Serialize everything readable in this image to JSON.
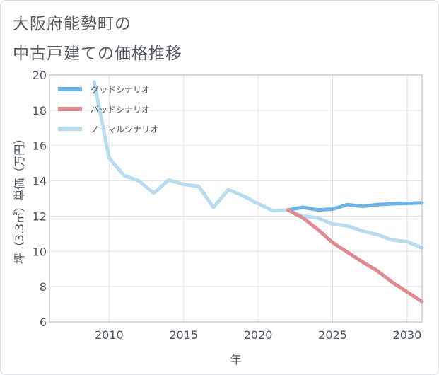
{
  "title": {
    "line1": "大阪府能勢町の",
    "line2": "中古戸建ての価格推移"
  },
  "chart_data": {
    "type": "line",
    "xlabel": "年",
    "ylabel": "坪（3.3㎡）単価（万円）",
    "xlim": [
      2006,
      2031
    ],
    "ylim": [
      6,
      20
    ],
    "xticks": [
      2010,
      2015,
      2020,
      2025,
      2030
    ],
    "yticks": [
      6,
      8,
      10,
      12,
      14,
      16,
      18,
      20
    ],
    "grid": true,
    "legend_position": "top-left",
    "series": [
      {
        "name": "グッドシナリオ",
        "color": "#6cb4e8",
        "x": [
          2022,
          2023,
          2024,
          2025,
          2026,
          2027,
          2028,
          2029,
          2030,
          2031
        ],
        "y": [
          12.35,
          12.5,
          12.35,
          12.4,
          12.65,
          12.55,
          12.65,
          12.7,
          12.72,
          12.75
        ]
      },
      {
        "name": "バッドシナリオ",
        "color": "#de8a90",
        "x": [
          2022,
          2023,
          2024,
          2025,
          2026,
          2027,
          2028,
          2029,
          2030,
          2031
        ],
        "y": [
          12.35,
          11.9,
          11.25,
          10.5,
          9.95,
          9.4,
          8.9,
          8.25,
          7.7,
          7.15
        ]
      },
      {
        "name": "ノーマルシナリオ",
        "color": "#b8dced",
        "x": [
          2009,
          2010,
          2011,
          2012,
          2013,
          2014,
          2015,
          2016,
          2017,
          2018,
          2019,
          2020,
          2021,
          2022,
          2023,
          2024,
          2025,
          2026,
          2027,
          2028,
          2029,
          2030,
          2031
        ],
        "y": [
          19.6,
          15.3,
          14.3,
          14.0,
          13.3,
          14.05,
          13.8,
          13.7,
          12.5,
          13.5,
          13.15,
          12.7,
          12.3,
          12.35,
          12.0,
          11.9,
          11.55,
          11.45,
          11.15,
          10.95,
          10.65,
          10.55,
          10.2
        ]
      }
    ]
  }
}
